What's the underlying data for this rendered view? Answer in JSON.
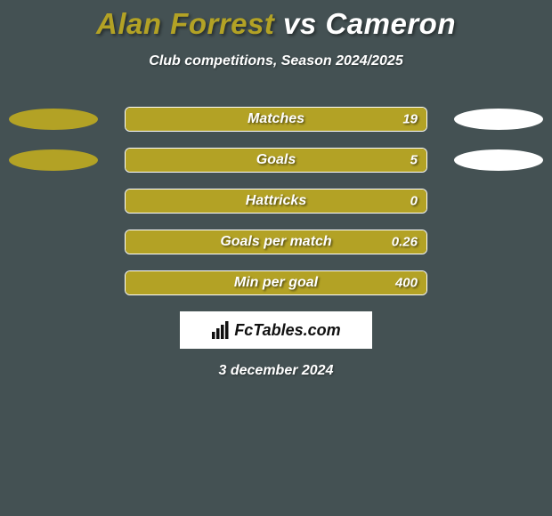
{
  "title": {
    "player1": "Alan Forrest",
    "vs": "vs",
    "player2": "Cameron",
    "player1_color": "#b3a225",
    "player2_color": "#ffffff"
  },
  "subtitle": "Club competitions, Season 2024/2025",
  "background_color": "#445153",
  "bar_style": {
    "fill_color": "#b3a225",
    "border_color": "#ffffff",
    "label_color": "#ffffff",
    "value_color": "#ffffff"
  },
  "ellipse_style": {
    "left_color": "#b3a225",
    "right_color": "#ffffff"
  },
  "rows": [
    {
      "label": "Matches",
      "value": "19",
      "fill_pct": 100,
      "left_ellipse": {
        "w": 100,
        "h": 24
      },
      "right_ellipse": {
        "w": 100,
        "h": 24
      }
    },
    {
      "label": "Goals",
      "value": "5",
      "fill_pct": 100,
      "left_ellipse": {
        "w": 100,
        "h": 24
      },
      "right_ellipse": {
        "w": 100,
        "h": 24
      }
    },
    {
      "label": "Hattricks",
      "value": "0",
      "fill_pct": 100,
      "left_ellipse": null,
      "right_ellipse": null
    },
    {
      "label": "Goals per match",
      "value": "0.26",
      "fill_pct": 100,
      "left_ellipse": null,
      "right_ellipse": null
    },
    {
      "label": "Min per goal",
      "value": "400",
      "fill_pct": 100,
      "left_ellipse": null,
      "right_ellipse": null
    }
  ],
  "brand": "FcTables.com",
  "date": "3 december 2024"
}
